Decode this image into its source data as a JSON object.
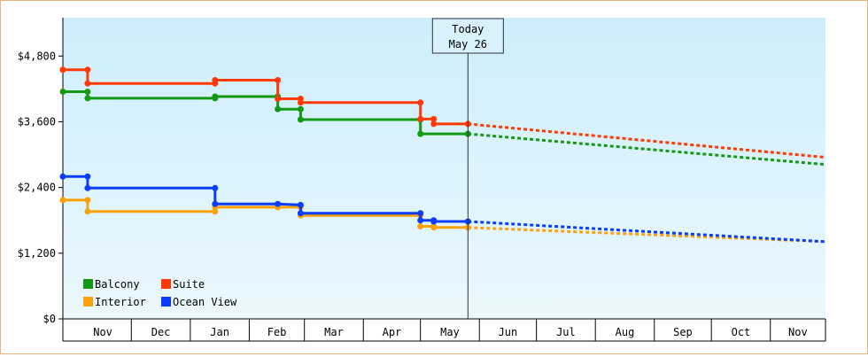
{
  "chart_data": {
    "type": "line",
    "y_axis": {
      "min": 0,
      "max": 5500,
      "ticks": [
        0,
        1200,
        2400,
        3600,
        4800
      ],
      "tick_labels": [
        "$0",
        "$1,200",
        "$2,400",
        "$3,600",
        "$4,800"
      ]
    },
    "x_axis": {
      "start": "2019-10-26",
      "end": "2020-11-30",
      "months": [
        {
          "label": "Nov",
          "start": "2019-11-01",
          "end": "2019-12-01"
        },
        {
          "label": "Dec",
          "start": "2019-12-01",
          "end": "2020-01-01"
        },
        {
          "label": "Jan",
          "start": "2020-01-01",
          "end": "2020-02-01"
        },
        {
          "label": "Feb",
          "start": "2020-02-01",
          "end": "2020-03-01"
        },
        {
          "label": "Mar",
          "start": "2020-03-01",
          "end": "2020-04-01"
        },
        {
          "label": "Apr",
          "start": "2020-04-01",
          "end": "2020-05-01"
        },
        {
          "label": "May",
          "start": "2020-05-01",
          "end": "2020-06-01"
        },
        {
          "label": "Jun",
          "start": "2020-06-01",
          "end": "2020-07-01"
        },
        {
          "label": "Jul",
          "start": "2020-07-01",
          "end": "2020-08-01"
        },
        {
          "label": "Aug",
          "start": "2020-08-01",
          "end": "2020-09-01"
        },
        {
          "label": "Sep",
          "start": "2020-09-01",
          "end": "2020-10-01"
        },
        {
          "label": "Oct",
          "start": "2020-10-01",
          "end": "2020-11-01"
        },
        {
          "label": "Nov",
          "start": "2020-11-01",
          "end": "2020-12-01"
        }
      ]
    },
    "today": {
      "date": "2020-05-26",
      "label_line1": "Today",
      "label_line2": "May 26"
    },
    "grid": false,
    "background_gradient": [
      "#cdeefb",
      "#ebf8fd"
    ],
    "legend": {
      "placement": "bottom-left",
      "entries": [
        {
          "name": "Balcony",
          "color": "#149914"
        },
        {
          "name": "Suite",
          "color": "#ff3a06"
        },
        {
          "name": "Interior",
          "color": "#f9a20e"
        },
        {
          "name": "Ocean View",
          "color": "#0b3dff"
        }
      ]
    },
    "series": [
      {
        "name": "Balcony",
        "color": "#149914",
        "points": [
          [
            "2019-10-26",
            4150
          ],
          [
            "2019-11-08",
            4150
          ],
          [
            "2019-11-08",
            4030
          ],
          [
            "2020-01-14",
            4030
          ],
          [
            "2020-01-14",
            4060
          ],
          [
            "2020-02-16",
            4060
          ],
          [
            "2020-02-16",
            3830
          ],
          [
            "2020-02-28",
            3830
          ],
          [
            "2020-02-28",
            3640
          ],
          [
            "2020-05-01",
            3640
          ],
          [
            "2020-05-01",
            3380
          ],
          [
            "2020-05-26",
            3380
          ]
        ],
        "forecast": [
          [
            "2020-05-26",
            3380
          ],
          [
            "2020-11-30",
            2820
          ]
        ]
      },
      {
        "name": "Suite",
        "color": "#ff3a06",
        "points": [
          [
            "2019-10-26",
            4550
          ],
          [
            "2019-11-08",
            4550
          ],
          [
            "2019-11-08",
            4300
          ],
          [
            "2020-01-14",
            4300
          ],
          [
            "2020-01-14",
            4360
          ],
          [
            "2020-02-16",
            4360
          ],
          [
            "2020-02-16",
            4020
          ],
          [
            "2020-02-28",
            4020
          ],
          [
            "2020-02-28",
            3950
          ],
          [
            "2020-05-01",
            3950
          ],
          [
            "2020-05-01",
            3650
          ],
          [
            "2020-05-08",
            3650
          ],
          [
            "2020-05-08",
            3560
          ],
          [
            "2020-05-26",
            3560
          ]
        ],
        "forecast": [
          [
            "2020-05-26",
            3560
          ],
          [
            "2020-11-30",
            2950
          ]
        ]
      },
      {
        "name": "Interior",
        "color": "#f9a20e",
        "points": [
          [
            "2019-10-26",
            2170
          ],
          [
            "2019-11-08",
            2170
          ],
          [
            "2019-11-08",
            1960
          ],
          [
            "2020-01-14",
            1960
          ],
          [
            "2020-01-14",
            2040
          ],
          [
            "2020-02-16",
            2040
          ],
          [
            "2020-02-28",
            2040
          ],
          [
            "2020-02-28",
            1890
          ],
          [
            "2020-05-01",
            1890
          ],
          [
            "2020-05-01",
            1690
          ],
          [
            "2020-05-08",
            1690
          ],
          [
            "2020-05-08",
            1670
          ],
          [
            "2020-05-26",
            1670
          ]
        ],
        "forecast": [
          [
            "2020-05-26",
            1670
          ],
          [
            "2020-11-30",
            1410
          ]
        ]
      },
      {
        "name": "Ocean View",
        "color": "#0b3dff",
        "points": [
          [
            "2019-10-26",
            2600
          ],
          [
            "2019-11-08",
            2600
          ],
          [
            "2019-11-08",
            2390
          ],
          [
            "2020-01-14",
            2390
          ],
          [
            "2020-01-14",
            2100
          ],
          [
            "2020-02-16",
            2100
          ],
          [
            "2020-02-28",
            2080
          ],
          [
            "2020-02-28",
            1930
          ],
          [
            "2020-05-01",
            1930
          ],
          [
            "2020-05-01",
            1800
          ],
          [
            "2020-05-08",
            1800
          ],
          [
            "2020-05-08",
            1780
          ],
          [
            "2020-05-26",
            1780
          ]
        ],
        "forecast": [
          [
            "2020-05-26",
            1780
          ],
          [
            "2020-11-30",
            1410
          ]
        ]
      }
    ]
  }
}
